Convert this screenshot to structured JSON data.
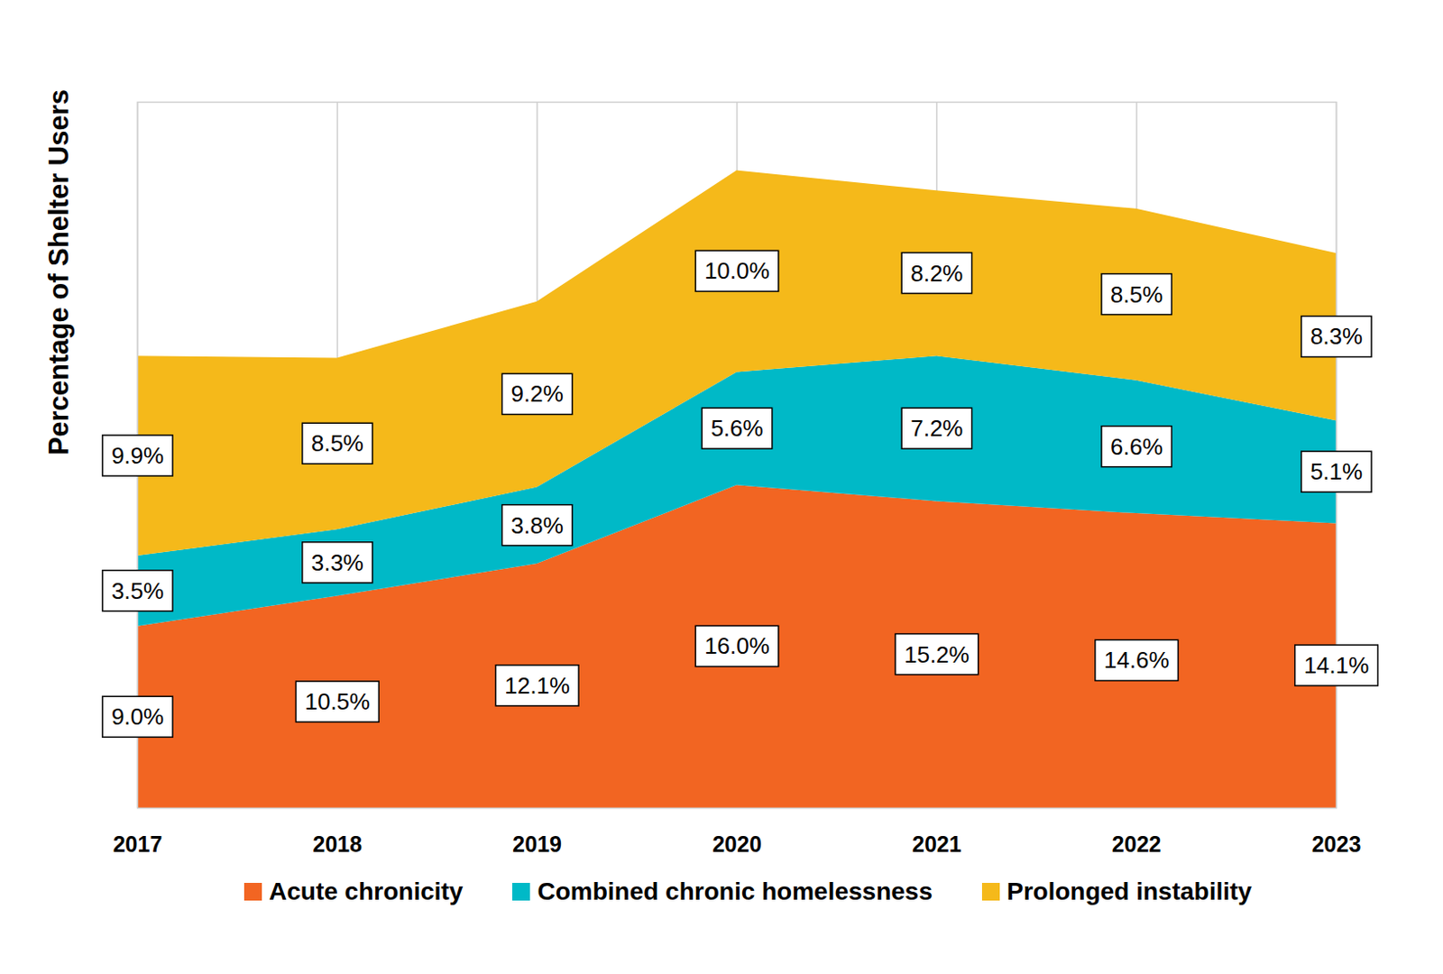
{
  "chart_data": {
    "type": "area",
    "stacked": true,
    "y_label": "Percentage of Shelter Users",
    "x": [
      2017,
      2018,
      2019,
      2020,
      2021,
      2022,
      2023
    ],
    "xlim": [
      2017,
      2023
    ],
    "xticks": [
      2017,
      2018,
      2019,
      2020,
      2021,
      2022,
      2023
    ],
    "ylim": [
      0,
      35
    ],
    "tick_labels": "x",
    "grid": true,
    "data_labels": true,
    "legend": "bottom",
    "series": [
      {
        "name": "Acute chronicity",
        "color": "#F26522",
        "values": [
          9.0,
          10.5,
          12.1,
          16.0,
          15.2,
          14.6,
          14.1
        ],
        "value_labels": [
          "9.0%",
          "10.5%",
          "12.1%",
          "16.0%",
          "15.2%",
          "14.6%",
          "14.1%"
        ]
      },
      {
        "name": "Combined chronic homelessness",
        "color": "#00B9C7",
        "values": [
          3.5,
          3.3,
          3.8,
          5.6,
          7.2,
          6.6,
          5.1
        ],
        "value_labels": [
          "3.5%",
          "3.3%",
          "3.8%",
          "5.6%",
          "7.2%",
          "6.6%",
          "5.1%"
        ]
      },
      {
        "name": "Prolonged instability",
        "color": "#F5B91A",
        "values": [
          9.9,
          8.5,
          9.2,
          10.0,
          8.2,
          8.5,
          8.3
        ],
        "value_labels": [
          "9.9%",
          "8.5%",
          "9.2%",
          "10.0%",
          "8.2%",
          "8.5%",
          "8.3%"
        ]
      }
    ]
  }
}
